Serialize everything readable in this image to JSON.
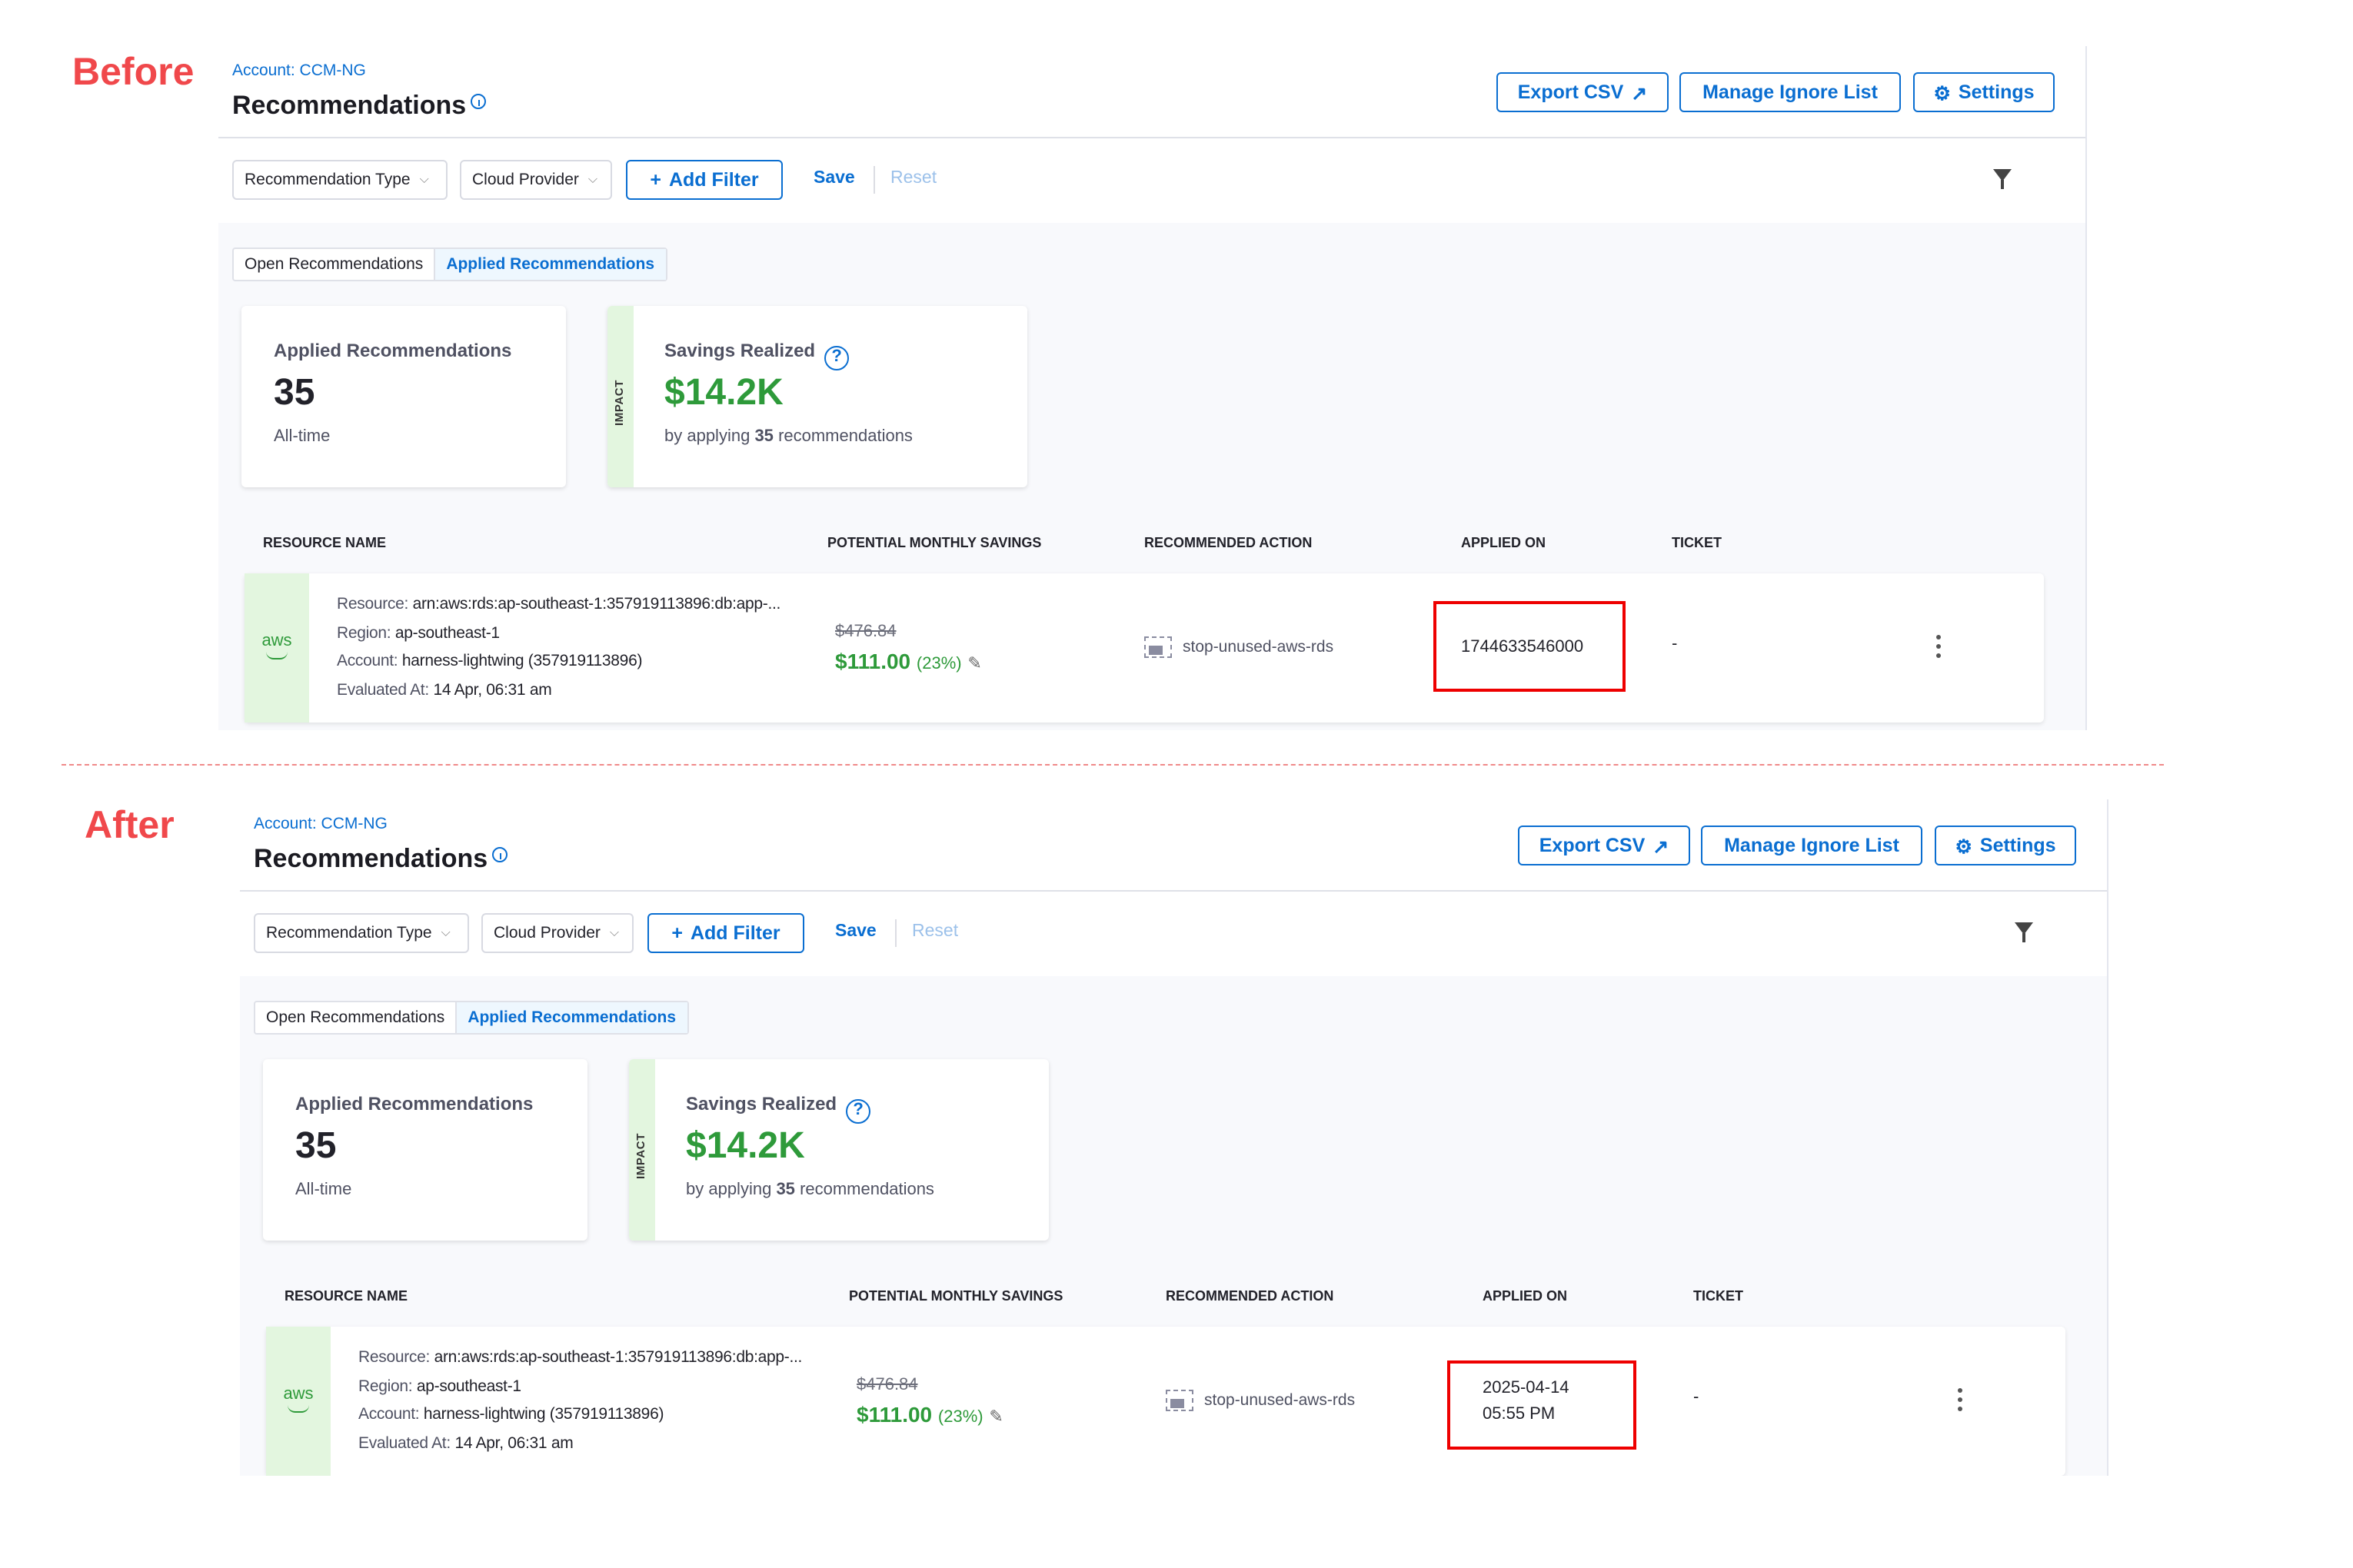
{
  "labels": {
    "before": "Before",
    "after": "After"
  },
  "colors": {
    "accent": "#0a6ed1",
    "savings": "#2e9a3a",
    "highlight": "#ee0000",
    "label": "#f0484b"
  },
  "before": {
    "account": "Account: CCM-NG",
    "title": "Recommendations",
    "buttons": {
      "export": "Export CSV",
      "ignore": "Manage Ignore List",
      "settings": "Settings"
    },
    "filters": {
      "rec_type": "Recommendation Type",
      "cloud": "Cloud Provider",
      "add": "Add Filter",
      "save": "Save",
      "reset": "Reset"
    },
    "tabs": {
      "open": "Open Recommendations",
      "applied": "Applied Recommendations"
    },
    "card1": {
      "title": "Applied Recommendations",
      "value": "35",
      "sub": "All-time"
    },
    "card2": {
      "impact": "IMPACT",
      "title": "Savings Realized",
      "value": "$14.2K",
      "sub_pre": "by applying",
      "sub_num": "35",
      "sub_post": "recommendations"
    },
    "columns": {
      "resource": "RESOURCE NAME",
      "savings": "POTENTIAL MONTHLY SAVINGS",
      "action": "RECOMMENDED ACTION",
      "applied": "APPLIED ON",
      "ticket": "TICKET"
    },
    "row": {
      "provider": "aws",
      "resource_label": "Resource:",
      "resource": "arn:aws:rds:ap-southeast-1:357919113896:db:app-...",
      "region_label": "Region:",
      "region": "ap-southeast-1",
      "account_label": "Account:",
      "account": "harness-lightwing (357919113896)",
      "evaluated_label": "Evaluated At:",
      "evaluated": "14 Apr, 06:31 am",
      "old_price": "$476.84",
      "new_price": "$111.00",
      "pct": "(23%)",
      "action": "stop-unused-aws-rds",
      "applied_line1": "1744633546000",
      "applied_line2": "",
      "ticket": "-"
    }
  },
  "after": {
    "account": "Account: CCM-NG",
    "title": "Recommendations",
    "buttons": {
      "export": "Export CSV",
      "ignore": "Manage Ignore List",
      "settings": "Settings"
    },
    "filters": {
      "rec_type": "Recommendation Type",
      "cloud": "Cloud Provider",
      "add": "Add Filter",
      "save": "Save",
      "reset": "Reset"
    },
    "tabs": {
      "open": "Open Recommendations",
      "applied": "Applied Recommendations"
    },
    "card1": {
      "title": "Applied Recommendations",
      "value": "35",
      "sub": "All-time"
    },
    "card2": {
      "impact": "IMPACT",
      "title": "Savings Realized",
      "value": "$14.2K",
      "sub_pre": "by applying",
      "sub_num": "35",
      "sub_post": "recommendations"
    },
    "columns": {
      "resource": "RESOURCE NAME",
      "savings": "POTENTIAL MONTHLY SAVINGS",
      "action": "RECOMMENDED ACTION",
      "applied": "APPLIED ON",
      "ticket": "TICKET"
    },
    "row": {
      "provider": "aws",
      "resource_label": "Resource:",
      "resource": "arn:aws:rds:ap-southeast-1:357919113896:db:app-...",
      "region_label": "Region:",
      "region": "ap-southeast-1",
      "account_label": "Account:",
      "account": "harness-lightwing (357919113896)",
      "evaluated_label": "Evaluated At:",
      "evaluated": "14 Apr, 06:31 am",
      "old_price": "$476.84",
      "new_price": "$111.00",
      "pct": "(23%)",
      "action": "stop-unused-aws-rds",
      "applied_line1": "2025-04-14",
      "applied_line2": "05:55 PM",
      "ticket": "-"
    }
  }
}
